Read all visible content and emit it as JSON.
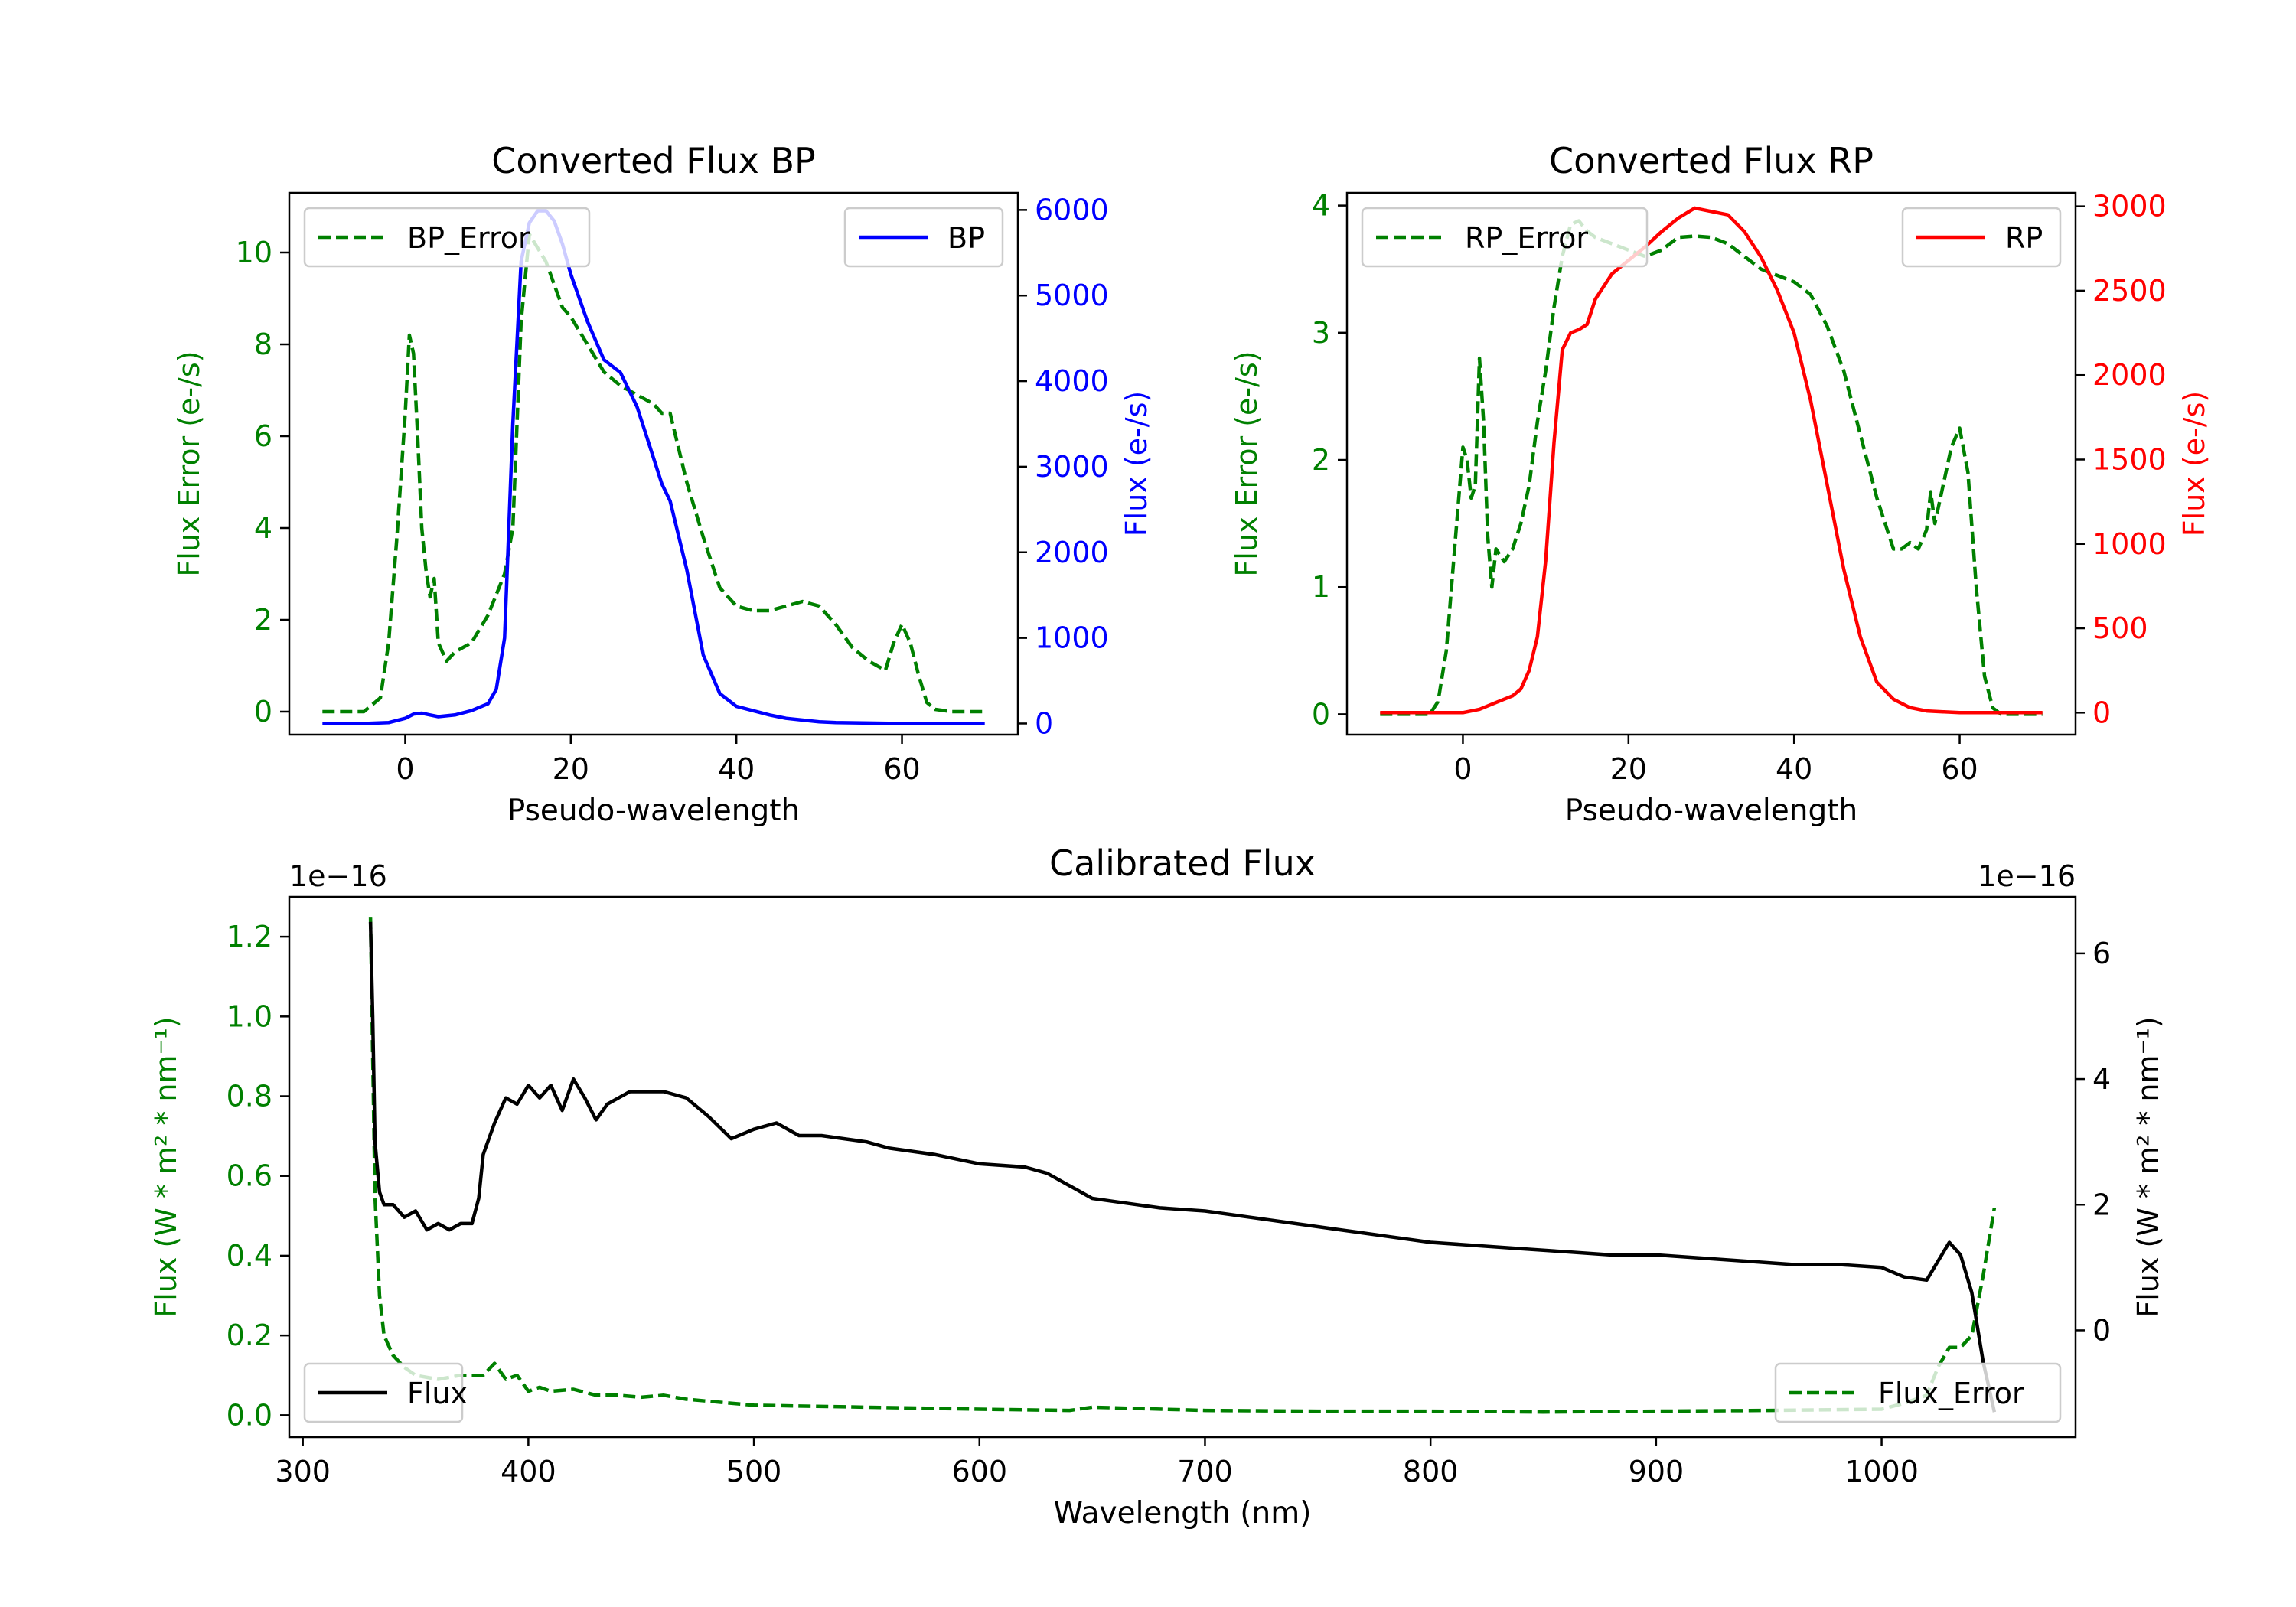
{
  "colors": {
    "error": "#008000",
    "bp": "#0000ff",
    "rp": "#ff0000",
    "flux": "#000000",
    "axis": "#000000",
    "legend_border": "#cccccc"
  },
  "chart_data": [
    {
      "id": "bp",
      "type": "line",
      "title": "Converted Flux BP",
      "xlabel": "Pseudo-wavelength",
      "xlim": [
        -14,
        74
      ],
      "xticks": [
        0,
        20,
        40,
        60
      ],
      "left_axis": {
        "label": "Flux Error (e-/s)",
        "ylim": [
          -0.5,
          11.3
        ],
        "ticks": [
          0,
          2,
          4,
          6,
          8,
          10
        ],
        "tick_labels": [
          "0",
          "2",
          "4",
          "6",
          "8",
          "10"
        ],
        "offset_label": ""
      },
      "right_axis": {
        "label": "Flux (e-/s)",
        "ylim": [
          -130,
          6200
        ],
        "ticks": [
          0,
          1000,
          2000,
          3000,
          4000,
          5000,
          6000
        ],
        "tick_labels": [
          "0",
          "1000",
          "2000",
          "3000",
          "4000",
          "5000",
          "6000"
        ],
        "offset_label": ""
      },
      "series": [
        {
          "name": "BP_Error",
          "axis": "left",
          "style": "dashed",
          "color": "#008000",
          "legend": "upper-left",
          "x": [
            -10,
            -5,
            -3,
            -2,
            -1,
            0,
            0.5,
            1,
            1.5,
            2,
            2.5,
            3,
            3.5,
            4,
            5,
            6,
            8,
            10,
            12,
            13,
            14,
            15,
            16,
            17,
            18,
            19,
            20,
            22,
            24,
            26,
            28,
            30,
            31,
            32,
            34,
            36,
            38,
            40,
            42,
            44,
            46,
            48,
            50,
            52,
            54,
            56,
            58,
            59,
            60,
            61,
            62,
            63,
            64,
            66,
            70
          ],
          "y": [
            0,
            0,
            0.3,
            1.5,
            3.8,
            6.5,
            8.2,
            7.8,
            6.0,
            4.0,
            3.1,
            2.5,
            2.9,
            1.5,
            1.1,
            1.3,
            1.5,
            2.1,
            3.0,
            4.0,
            8.5,
            10.4,
            10.1,
            9.8,
            9.3,
            8.8,
            8.6,
            8.0,
            7.4,
            7.1,
            6.9,
            6.7,
            6.5,
            6.5,
            5.0,
            3.8,
            2.7,
            2.3,
            2.2,
            2.2,
            2.3,
            2.4,
            2.3,
            1.9,
            1.4,
            1.1,
            0.9,
            1.5,
            1.9,
            1.5,
            0.8,
            0.2,
            0.05,
            0,
            0
          ]
        },
        {
          "name": "BP",
          "axis": "right",
          "style": "solid",
          "color": "#0000ff",
          "legend": "upper-right",
          "x": [
            -10,
            -5,
            -2,
            0,
            1,
            2,
            3,
            4,
            6,
            8,
            10,
            11,
            12,
            13,
            14,
            15,
            16,
            17,
            18,
            19,
            20,
            22,
            24,
            26,
            28,
            30,
            31,
            32,
            34,
            36,
            38,
            40,
            42,
            44,
            46,
            48,
            50,
            52,
            56,
            60,
            65,
            70
          ],
          "y": [
            0,
            0,
            10,
            60,
            110,
            120,
            100,
            80,
            100,
            150,
            230,
            400,
            1000,
            3500,
            5400,
            5850,
            5990,
            5990,
            5870,
            5600,
            5250,
            4700,
            4250,
            4100,
            3700,
            3100,
            2800,
            2600,
            1800,
            800,
            350,
            200,
            150,
            100,
            60,
            40,
            20,
            10,
            5,
            0,
            0,
            0
          ]
        }
      ]
    },
    {
      "id": "rp",
      "type": "line",
      "title": "Converted Flux RP",
      "xlabel": "Pseudo-wavelength",
      "xlim": [
        -14,
        74
      ],
      "xticks": [
        0,
        20,
        40,
        60
      ],
      "left_axis": {
        "label": "Flux Error (e-/s)",
        "ylim": [
          -0.16,
          4.1
        ],
        "ticks": [
          0,
          1,
          2,
          3,
          4
        ],
        "tick_labels": [
          "0",
          "1",
          "2",
          "3",
          "4"
        ],
        "offset_label": ""
      },
      "right_axis": {
        "label": "Flux (e-/s)",
        "ylim": [
          -130,
          3080
        ],
        "ticks": [
          0,
          500,
          1000,
          1500,
          2000,
          2500,
          3000
        ],
        "tick_labels": [
          "0",
          "500",
          "1000",
          "1500",
          "2000",
          "2500",
          "3000"
        ],
        "offset_label": ""
      },
      "series": [
        {
          "name": "RP_Error",
          "axis": "left",
          "style": "dashed",
          "color": "#008000",
          "legend": "upper-left",
          "x": [
            -10,
            -4,
            -3,
            -2,
            -1,
            0,
            0.5,
            1,
            1.5,
            2,
            2.5,
            3,
            3.5,
            4,
            5,
            6,
            7,
            8,
            9,
            10,
            11,
            12,
            13,
            14,
            15,
            16,
            18,
            20,
            22,
            24,
            26,
            28,
            30,
            32,
            34,
            36,
            38,
            40,
            42,
            44,
            46,
            48,
            50,
            52,
            53,
            54,
            55,
            56,
            56.5,
            57,
            58,
            59,
            60,
            61,
            62,
            63,
            64,
            65,
            70
          ],
          "y": [
            0,
            0,
            0.1,
            0.5,
            1.3,
            2.1,
            2.0,
            1.7,
            1.8,
            2.8,
            2.3,
            1.4,
            1.0,
            1.3,
            1.2,
            1.3,
            1.5,
            1.8,
            2.3,
            2.7,
            3.2,
            3.6,
            3.85,
            3.88,
            3.8,
            3.75,
            3.7,
            3.65,
            3.6,
            3.65,
            3.75,
            3.76,
            3.75,
            3.7,
            3.6,
            3.5,
            3.45,
            3.4,
            3.3,
            3.05,
            2.7,
            2.2,
            1.7,
            1.3,
            1.3,
            1.35,
            1.3,
            1.45,
            1.75,
            1.5,
            1.8,
            2.1,
            2.25,
            1.9,
            1.0,
            0.3,
            0.05,
            0,
            0
          ]
        },
        {
          "name": "RP",
          "axis": "right",
          "style": "solid",
          "color": "#ff0000",
          "legend": "upper-right",
          "x": [
            -10,
            -5,
            0,
            2,
            4,
            6,
            7,
            8,
            9,
            10,
            11,
            12,
            13,
            14,
            15,
            16,
            18,
            20,
            22,
            24,
            26,
            28,
            30,
            32,
            34,
            36,
            38,
            40,
            42,
            44,
            46,
            48,
            50,
            52,
            54,
            56,
            58,
            60,
            65,
            70
          ],
          "y": [
            0,
            0,
            0,
            20,
            60,
            100,
            140,
            250,
            450,
            900,
            1600,
            2150,
            2250,
            2270,
            2300,
            2450,
            2600,
            2680,
            2760,
            2850,
            2930,
            2990,
            2970,
            2950,
            2850,
            2700,
            2500,
            2250,
            1850,
            1350,
            850,
            450,
            180,
            80,
            30,
            10,
            5,
            0,
            0,
            0
          ]
        }
      ]
    },
    {
      "id": "calibrated",
      "type": "line",
      "title": "Calibrated Flux",
      "xlabel": "Wavelength (nm)",
      "xlim": [
        294,
        1086
      ],
      "xticks": [
        300,
        400,
        500,
        600,
        700,
        800,
        900,
        1000
      ],
      "left_axis": {
        "label": "Flux (W * m² * nm⁻¹)",
        "ylim": [
          -0.055,
          1.3
        ],
        "ticks": [
          0.0,
          0.2,
          0.4,
          0.6,
          0.8,
          1.0,
          1.2
        ],
        "tick_labels": [
          "0.0",
          "0.2",
          "0.4",
          "0.6",
          "0.8",
          "1.0",
          "1.2"
        ],
        "offset_label": "1e−16"
      },
      "right_axis": {
        "label": "Flux (W * m² * nm⁻¹)",
        "ylim": [
          -1.7,
          6.9
        ],
        "ticks": [
          0,
          2,
          4,
          6
        ],
        "tick_labels": [
          "0",
          "2",
          "4",
          "6"
        ],
        "offset_label": "1e−16"
      },
      "series": [
        {
          "name": "Flux_Error",
          "axis": "left",
          "style": "dashed",
          "color": "#008000",
          "legend": "lower-right",
          "x": [
            330,
            331,
            332,
            334,
            336,
            340,
            345,
            350,
            360,
            370,
            380,
            385,
            390,
            395,
            400,
            405,
            410,
            420,
            430,
            440,
            450,
            460,
            470,
            480,
            500,
            550,
            600,
            640,
            650,
            700,
            750,
            800,
            850,
            900,
            950,
            1000,
            1010,
            1020,
            1025,
            1030,
            1035,
            1040,
            1045,
            1050
          ],
          "y": [
            1.25,
            0.9,
            0.55,
            0.3,
            0.2,
            0.15,
            0.12,
            0.1,
            0.09,
            0.1,
            0.1,
            0.13,
            0.09,
            0.1,
            0.06,
            0.07,
            0.06,
            0.065,
            0.05,
            0.05,
            0.045,
            0.05,
            0.04,
            0.035,
            0.025,
            0.02,
            0.015,
            0.012,
            0.02,
            0.012,
            0.01,
            0.01,
            0.008,
            0.01,
            0.012,
            0.015,
            0.03,
            0.05,
            0.12,
            0.17,
            0.17,
            0.2,
            0.35,
            0.52
          ]
        },
        {
          "name": "Flux",
          "axis": "right",
          "style": "solid",
          "color": "#000000",
          "legend": "lower-left",
          "x": [
            330,
            331,
            332,
            334,
            336,
            340,
            345,
            350,
            355,
            360,
            365,
            370,
            375,
            378,
            380,
            385,
            390,
            395,
            400,
            405,
            410,
            415,
            420,
            425,
            430,
            435,
            440,
            445,
            450,
            460,
            470,
            480,
            490,
            500,
            510,
            520,
            530,
            540,
            550,
            560,
            580,
            600,
            620,
            630,
            640,
            650,
            660,
            670,
            680,
            700,
            720,
            740,
            760,
            780,
            800,
            820,
            840,
            860,
            880,
            900,
            920,
            940,
            960,
            980,
            1000,
            1010,
            1020,
            1025,
            1030,
            1035,
            1040,
            1045,
            1050
          ],
          "y": [
            6.5,
            5.0,
            3.0,
            2.2,
            2.0,
            2.0,
            1.8,
            1.9,
            1.6,
            1.7,
            1.6,
            1.7,
            1.7,
            2.1,
            2.8,
            3.3,
            3.7,
            3.6,
            3.9,
            3.7,
            3.9,
            3.5,
            4.0,
            3.7,
            3.35,
            3.6,
            3.7,
            3.8,
            3.8,
            3.8,
            3.7,
            3.4,
            3.05,
            3.2,
            3.3,
            3.1,
            3.1,
            3.05,
            3.0,
            2.9,
            2.8,
            2.65,
            2.6,
            2.5,
            2.3,
            2.1,
            2.05,
            2.0,
            1.95,
            1.9,
            1.8,
            1.7,
            1.6,
            1.5,
            1.4,
            1.35,
            1.3,
            1.25,
            1.2,
            1.2,
            1.15,
            1.1,
            1.05,
            1.05,
            1.0,
            0.85,
            0.8,
            1.1,
            1.4,
            1.2,
            0.6,
            -0.5,
            -1.3
          ]
        }
      ]
    }
  ]
}
